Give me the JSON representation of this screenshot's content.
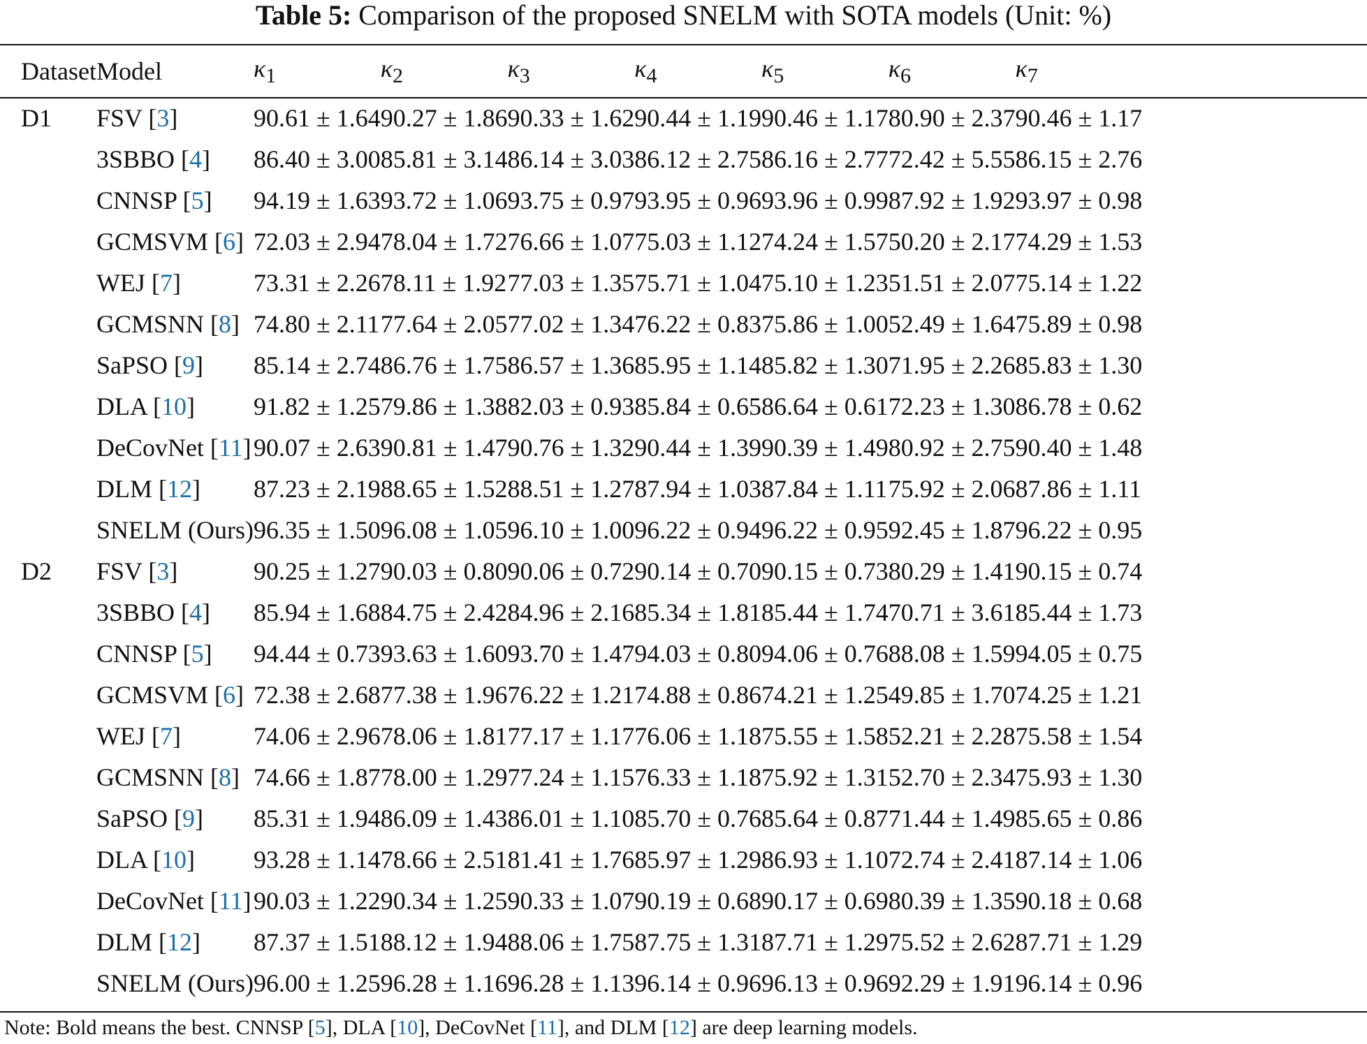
{
  "caption": {
    "label": "Table 5:",
    "text": "Comparison of the proposed SNELM with SOTA models (Unit: %)"
  },
  "header": {
    "dataset": "Dataset",
    "model": "Model",
    "kappas": [
      {
        "symbol": "κ",
        "sub": "1"
      },
      {
        "symbol": "κ",
        "sub": "2"
      },
      {
        "symbol": "κ",
        "sub": "3"
      },
      {
        "symbol": "κ",
        "sub": "4"
      },
      {
        "symbol": "κ",
        "sub": "5"
      },
      {
        "symbol": "κ",
        "sub": "6"
      },
      {
        "symbol": "κ",
        "sub": "7"
      }
    ]
  },
  "groups": [
    {
      "dataset": "D1",
      "rows": [
        {
          "model": "FSV",
          "ref": "3",
          "values": [
            "90.61 ± 1.64",
            "90.27 ± 1.86",
            "90.33 ± 1.62",
            "90.44 ± 1.19",
            "90.46 ± 1.17",
            "80.90 ± 2.37",
            "90.46 ± 1.17"
          ],
          "best": false
        },
        {
          "model": "3SBBO",
          "ref": "4",
          "values": [
            "86.40 ± 3.00",
            "85.81 ± 3.14",
            "86.14 ± 3.03",
            "86.12 ± 2.75",
            "86.16 ± 2.77",
            "72.42 ± 5.55",
            "86.15 ± 2.76"
          ],
          "best": false
        },
        {
          "model": "CNNSP",
          "ref": "5",
          "values": [
            "94.19 ± 1.63",
            "93.72 ± 1.06",
            "93.75 ± 0.97",
            "93.95 ± 0.96",
            "93.96 ± 0.99",
            "87.92 ± 1.92",
            "93.97 ± 0.98"
          ],
          "best": false
        },
        {
          "model": "GCMSVM",
          "ref": "6",
          "values": [
            "72.03 ± 2.94",
            "78.04 ± 1.72",
            "76.66 ± 1.07",
            "75.03 ± 1.12",
            "74.24 ± 1.57",
            "50.20 ± 2.17",
            "74.29 ± 1.53"
          ],
          "best": false
        },
        {
          "model": "WEJ",
          "ref": "7",
          "values": [
            "73.31 ± 2.26",
            "78.11 ± 1.92",
            "77.03 ± 1.35",
            "75.71 ± 1.04",
            "75.10 ± 1.23",
            "51.51 ± 2.07",
            "75.14 ± 1.22"
          ],
          "best": false
        },
        {
          "model": "GCMSNN",
          "ref": "8",
          "values": [
            "74.80 ± 2.11",
            "77.64 ± 2.05",
            "77.02 ± 1.34",
            "76.22 ± 0.83",
            "75.86 ± 1.00",
            "52.49 ± 1.64",
            "75.89 ± 0.98"
          ],
          "best": false
        },
        {
          "model": "SaPSO",
          "ref": "9",
          "values": [
            "85.14 ± 2.74",
            "86.76 ± 1.75",
            "86.57 ± 1.36",
            "85.95 ± 1.14",
            "85.82 ± 1.30",
            "71.95 ± 2.26",
            "85.83 ± 1.30"
          ],
          "best": false
        },
        {
          "model": "DLA",
          "ref": "10",
          "values": [
            "91.82 ± 1.25",
            "79.86 ± 1.38",
            "82.03 ± 0.93",
            "85.84 ± 0.65",
            "86.64 ± 0.61",
            "72.23 ± 1.30",
            "86.78 ± 0.62"
          ],
          "best": false
        },
        {
          "model": "DeCovNet",
          "ref": "11",
          "values": [
            "90.07 ± 2.63",
            "90.81 ± 1.47",
            "90.76 ± 1.32",
            "90.44 ± 1.39",
            "90.39 ± 1.49",
            "80.92 ± 2.75",
            "90.40 ± 1.48"
          ],
          "best": false
        },
        {
          "model": "DLM",
          "ref": "12",
          "values": [
            "87.23 ± 2.19",
            "88.65 ± 1.52",
            "88.51 ± 1.27",
            "87.94 ± 1.03",
            "87.84 ± 1.11",
            "75.92 ± 2.06",
            "87.86 ± 1.11"
          ],
          "best": false
        },
        {
          "model": "SNELM (Ours)",
          "ref": "",
          "values": [
            "96.35 ± 1.50",
            "96.08 ± 1.05",
            "96.10 ± 1.00",
            "96.22 ± 0.94",
            "96.22 ± 0.95",
            "92.45 ± 1.87",
            "96.22 ± 0.95"
          ],
          "best": true
        }
      ]
    },
    {
      "dataset": "D2",
      "rows": [
        {
          "model": "FSV",
          "ref": "3",
          "values": [
            "90.25 ± 1.27",
            "90.03 ± 0.80",
            "90.06 ± 0.72",
            "90.14 ± 0.70",
            "90.15 ± 0.73",
            "80.29 ± 1.41",
            "90.15 ± 0.74"
          ],
          "best": false
        },
        {
          "model": "3SBBO",
          "ref": "4",
          "values": [
            "85.94 ± 1.68",
            "84.75 ± 2.42",
            "84.96 ± 2.16",
            "85.34 ± 1.81",
            "85.44 ± 1.74",
            "70.71 ± 3.61",
            "85.44 ± 1.73"
          ],
          "best": false
        },
        {
          "model": "CNNSP",
          "ref": "5",
          "values": [
            "94.44 ± 0.73",
            "93.63 ± 1.60",
            "93.70 ± 1.47",
            "94.03 ± 0.80",
            "94.06 ± 0.76",
            "88.08 ± 1.59",
            "94.05 ± 0.75"
          ],
          "best": false
        },
        {
          "model": "GCMSVM",
          "ref": "6",
          "values": [
            "72.38 ± 2.68",
            "77.38 ± 1.96",
            "76.22 ± 1.21",
            "74.88 ± 0.86",
            "74.21 ± 1.25",
            "49.85 ± 1.70",
            "74.25 ± 1.21"
          ],
          "best": false
        },
        {
          "model": "WEJ",
          "ref": "7",
          "values": [
            "74.06 ± 2.96",
            "78.06 ± 1.81",
            "77.17 ± 1.17",
            "76.06 ± 1.18",
            "75.55 ± 1.58",
            "52.21 ± 2.28",
            "75.58 ± 1.54"
          ],
          "best": false
        },
        {
          "model": "GCMSNN",
          "ref": "8",
          "values": [
            "74.66 ± 1.87",
            "78.00 ± 1.29",
            "77.24 ± 1.15",
            "76.33 ± 1.18",
            "75.92 ± 1.31",
            "52.70 ± 2.34",
            "75.93 ± 1.30"
          ],
          "best": false
        },
        {
          "model": "SaPSO",
          "ref": "9",
          "values": [
            "85.31 ± 1.94",
            "86.09 ± 1.43",
            "86.01 ± 1.10",
            "85.70 ± 0.76",
            "85.64 ± 0.87",
            "71.44 ± 1.49",
            "85.65 ± 0.86"
          ],
          "best": false
        },
        {
          "model": "DLA",
          "ref": "10",
          "values": [
            "93.28 ± 1.14",
            "78.66 ± 2.51",
            "81.41 ± 1.76",
            "85.97 ± 1.29",
            "86.93 ± 1.10",
            "72.74 ± 2.41",
            "87.14 ± 1.06"
          ],
          "best": false
        },
        {
          "model": "DeCovNet",
          "ref": "11",
          "values": [
            "90.03 ± 1.22",
            "90.34 ± 1.25",
            "90.33 ± 1.07",
            "90.19 ± 0.68",
            "90.17 ± 0.69",
            "80.39 ± 1.35",
            "90.18 ± 0.68"
          ],
          "best": false
        },
        {
          "model": "DLM",
          "ref": "12",
          "values": [
            "87.37 ± 1.51",
            "88.12 ± 1.94",
            "88.06 ± 1.75",
            "87.75 ± 1.31",
            "87.71 ± 1.29",
            "75.52 ± 2.62",
            "87.71 ± 1.29"
          ],
          "best": false
        },
        {
          "model": "SNELM (Ours)",
          "ref": "",
          "values": [
            "96.00 ± 1.25",
            "96.28 ± 1.16",
            "96.28 ± 1.13",
            "96.14 ± 0.96",
            "96.13 ± 0.96",
            "92.29 ± 1.91",
            "96.14 ± 0.96"
          ],
          "best": true
        }
      ]
    }
  ],
  "note": {
    "prefix": "Note: Bold means the best. CNNSP [",
    "r1": "5",
    "t1": "], DLA [",
    "r2": "10",
    "t2": "], DeCovNet [",
    "r3": "11",
    "t3": "], and DLM [",
    "r4": "12",
    "t4": "] are deep learning models."
  },
  "colors": {
    "text": "#111111",
    "reference_link": "#1a6fa8",
    "background": "#ffffff"
  }
}
